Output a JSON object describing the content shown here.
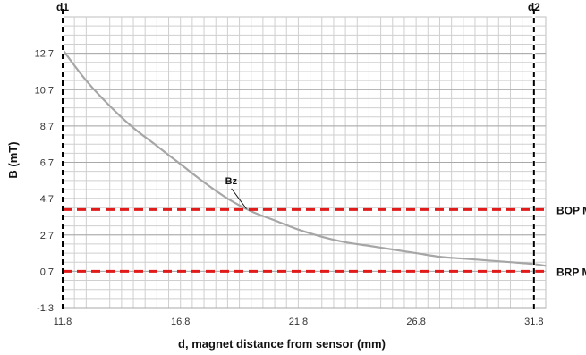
{
  "chart_data": {
    "type": "line",
    "title": "",
    "xlabel": "d, magnet distance from sensor (mm)",
    "ylabel": "B (mT)",
    "xlim": [
      11.8,
      32.3
    ],
    "ylim": [
      -1.3,
      14.7
    ],
    "x_ticks": [
      11.8,
      16.8,
      21.8,
      26.8,
      31.8
    ],
    "y_ticks": [
      -1.3,
      0.7,
      2.7,
      4.7,
      6.7,
      8.7,
      10.7,
      12.7
    ],
    "x_tick_labels": [
      "11.8",
      "16.8",
      "21.8",
      "26.8",
      "31.8"
    ],
    "y_tick_labels": [
      "-1.3",
      "0.7",
      "2.7",
      "4.7",
      "6.7",
      "8.7",
      "10.7",
      "12.7"
    ],
    "grid": true,
    "series": [
      {
        "name": "Bz",
        "color": "#a6a6a6",
        "x": [
          11.8,
          12.8,
          13.8,
          14.8,
          15.8,
          16.8,
          17.8,
          18.8,
          19.8,
          20.8,
          21.8,
          22.8,
          23.8,
          24.8,
          25.8,
          26.8,
          27.8,
          28.8,
          29.8,
          30.8,
          31.8,
          32.3
        ],
        "y": [
          12.9,
          11.2,
          9.8,
          8.6,
          7.6,
          6.6,
          5.6,
          4.7,
          4.0,
          3.5,
          3.0,
          2.6,
          2.3,
          2.1,
          1.9,
          1.7,
          1.5,
          1.4,
          1.3,
          1.2,
          1.1,
          1.0
        ]
      }
    ],
    "annotations": [
      {
        "text": "Bz",
        "x": 19.0,
        "y": 5.5
      }
    ],
    "vertical_markers": [
      {
        "label": "d1",
        "x": 11.8,
        "color": "#000000"
      },
      {
        "label": "d2",
        "x": 31.8,
        "color": "#000000"
      }
    ],
    "horizontal_markers": [
      {
        "label": "BOP M",
        "y": 4.1,
        "color": "#e11a1a"
      },
      {
        "label": "BRP M",
        "y": 0.7,
        "color": "#e11a1a"
      }
    ]
  }
}
